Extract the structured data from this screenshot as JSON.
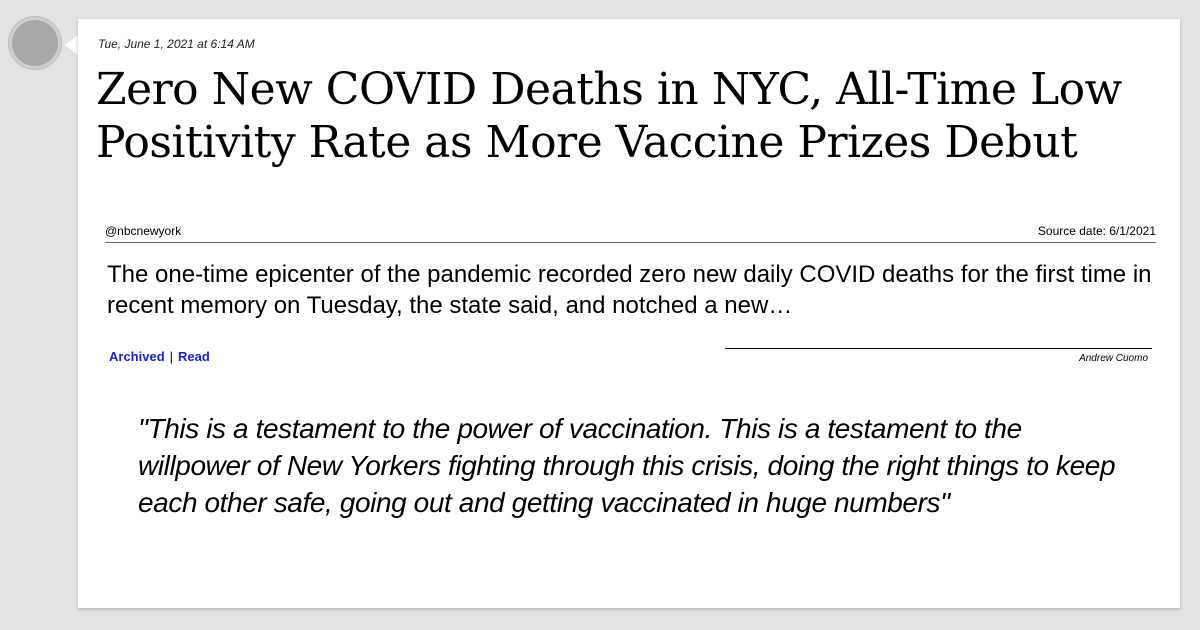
{
  "post": {
    "timestamp": "Tue, June 1, 2021 at 6:14 AM",
    "headline": "Zero New COVID Deaths in NYC, All-Time Low Positivity Rate as More Vaccine Prizes Debut",
    "source_handle": "@nbcnewyork",
    "source_date": "Source date: 6/1/2021",
    "summary": "The one-time epicenter of the pandemic recorded zero new daily COVID deaths for the first time in recent memory on Tuesday, the state said, and notched a new…",
    "links": {
      "archived": "Archived",
      "separator": "|",
      "read": "Read"
    },
    "attribution": "Andrew Cuomo",
    "quote": "\"This is a testament to the power of vaccination. This is a testament to the willpower of New Yorkers fighting through this crisis, doing the right things to keep each other safe, going out and getting vaccinated in huge numbers\""
  },
  "colors": {
    "background": "#e3e3e3",
    "card": "#ffffff",
    "avatar": "#a8a8a8",
    "link": "#1a24c8"
  }
}
